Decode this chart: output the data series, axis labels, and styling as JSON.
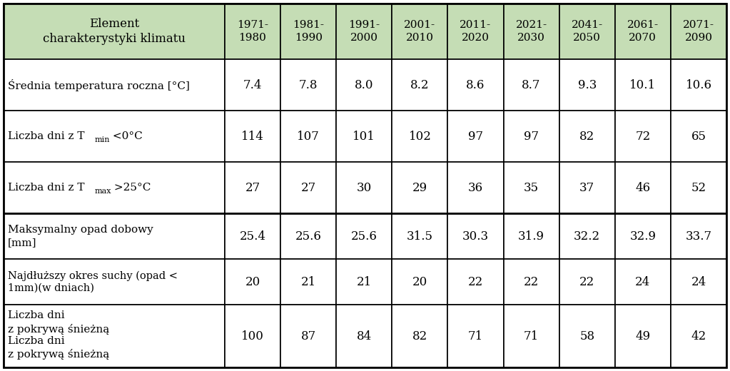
{
  "header_col_text": "Element\ncharakterystyki klimatu",
  "header_row": [
    "1971-\n1980",
    "1981-\n1990",
    "1991-\n2000",
    "2001-\n2010",
    "2011-\n2020",
    "2021-\n2030",
    "2041-\n2050",
    "2061-\n2070",
    "2071-\n2090"
  ],
  "data": [
    [
      "7.4",
      "7.8",
      "8.0",
      "8.2",
      "8.6",
      "8.7",
      "9.3",
      "10.1",
      "10.6"
    ],
    [
      "114",
      "107",
      "101",
      "102",
      "97",
      "97",
      "82",
      "72",
      "65"
    ],
    [
      "27",
      "27",
      "30",
      "29",
      "36",
      "35",
      "37",
      "46",
      "52"
    ],
    [
      "25.4",
      "25.6",
      "25.6",
      "31.5",
      "30.3",
      "31.9",
      "32.2",
      "32.9",
      "33.7"
    ],
    [
      "20",
      "21",
      "21",
      "20",
      "22",
      "22",
      "22",
      "24",
      "24"
    ],
    [
      "100",
      "87",
      "84",
      "82",
      "71",
      "71",
      "58",
      "49",
      "42"
    ]
  ],
  "row0_label": "Średnia temperatura roczna [°C]",
  "row1_label_pre": "Liczba dni z T",
  "row1_label_sub": "min",
  "row1_label_post": " <0°C",
  "row2_label_pre": "Liczba dni z T",
  "row2_label_sub": "max",
  "row2_label_post": " >25°C",
  "row3_label": "Maksymalny opad dobowy\n[mm]",
  "row4_label": "Najdłuższy okres suchy (opad <\n1mm)(w dniach)",
  "row5_label": "Liczba dni\nz pokrywą śnieżną",
  "header_bg": "#c5ddb5",
  "cell_bg": "#ffffff",
  "border_color": "#000000",
  "text_color": "#000000",
  "thick_border_after_row3": true
}
